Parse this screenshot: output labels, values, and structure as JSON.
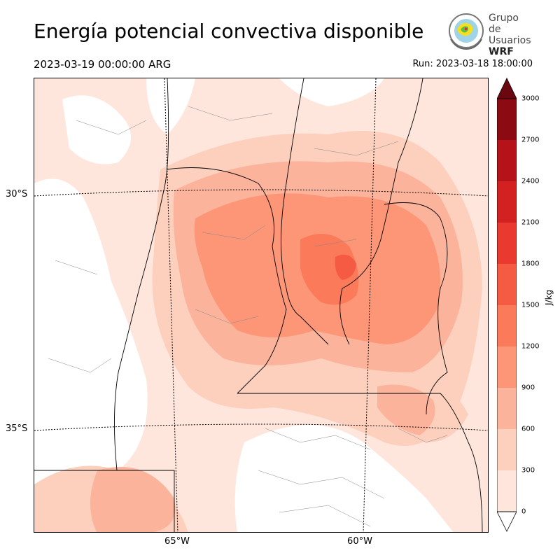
{
  "title": "Energía potencial convectiva disponible",
  "valid_time": "2023-03-19 00:00:00 ARG",
  "run_time": "Run: 2023-03-18 18:00:00",
  "logo": {
    "line1": "Grupo de",
    "line2": "Usuarios",
    "line3": "WRF"
  },
  "map": {
    "lat_labels": [
      "30°S",
      "35°S"
    ],
    "lon_labels": [
      "65°W",
      "60°W"
    ],
    "background_color": "#ffffff",
    "border_color": "#000000"
  },
  "colorbar": {
    "unit": "J/kg",
    "ticks": [
      "0",
      "300",
      "600",
      "900",
      "1200",
      "1500",
      "1800",
      "2100",
      "2400",
      "2700",
      "3000"
    ],
    "colors": [
      "#fee6dc",
      "#fdd0bd",
      "#fcb39b",
      "#fc9677",
      "#fb7a5a",
      "#f55a42",
      "#ea3a2f",
      "#d32121",
      "#b51319",
      "#8c0b13",
      "#6b0710"
    ]
  }
}
